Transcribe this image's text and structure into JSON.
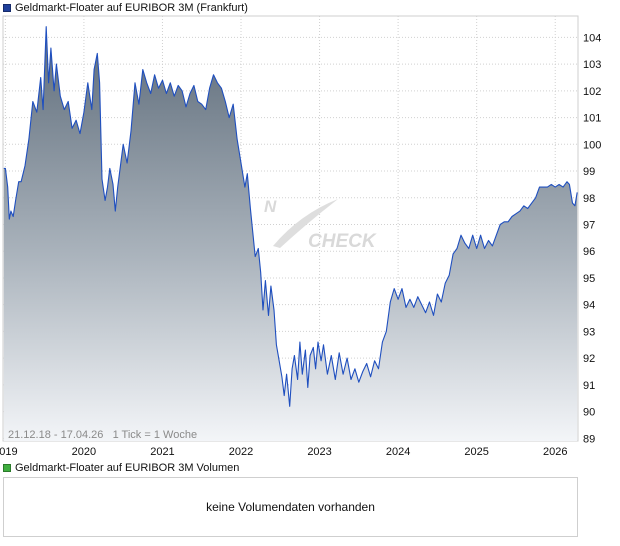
{
  "price_legend": "Geldmarkt-Floater auf EURIBOR 3M (Frankfurt)",
  "volume_legend": "Geldmarkt-Floater auf EURIBOR 3M Volumen",
  "no_volume_text": "keine Volumendaten vorhanden",
  "info_text": "21.12.18 - 17.04.26   1 Tick = 1 Woche",
  "watermark": {
    "left": "N",
    "right": "CHECK"
  },
  "colors": {
    "line": "#1f4fbf",
    "area_top": "#5d6b79",
    "area_bottom": "#f3f5f8",
    "grid": "#d0d0d0"
  },
  "chart_data": {
    "type": "area",
    "title": "Geldmarkt-Floater auf EURIBOR 3M (Frankfurt)",
    "xlabel": "",
    "ylabel": "",
    "date_range": [
      "21.12.18",
      "17.04.26"
    ],
    "xlim": [
      2018.97,
      2026.29
    ],
    "ylim": [
      88.9,
      104.8
    ],
    "x_ticks": [
      2019,
      2020,
      2021,
      2022,
      2023,
      2024,
      2025,
      2026
    ],
    "x_tick_labels": [
      "2019",
      "2020",
      "2021",
      "2022",
      "2023",
      "2024",
      "2025",
      "2026"
    ],
    "y_ticks": [
      89,
      90,
      91,
      92,
      93,
      94,
      95,
      96,
      97,
      98,
      99,
      100,
      101,
      102,
      103,
      104
    ],
    "grid": true,
    "series": [
      {
        "name": "Geldmarkt-Floater auf EURIBOR 3M (Frankfurt)",
        "points": [
          [
            2018.98,
            99.1
          ],
          [
            2019.0,
            99.1
          ],
          [
            2019.03,
            98.4
          ],
          [
            2019.05,
            97.2
          ],
          [
            2019.07,
            97.5
          ],
          [
            2019.1,
            97.3
          ],
          [
            2019.13,
            97.9
          ],
          [
            2019.17,
            98.6
          ],
          [
            2019.2,
            98.6
          ],
          [
            2019.25,
            99.2
          ],
          [
            2019.3,
            100.2
          ],
          [
            2019.35,
            101.6
          ],
          [
            2019.4,
            101.2
          ],
          [
            2019.45,
            102.5
          ],
          [
            2019.48,
            101.3
          ],
          [
            2019.52,
            104.4
          ],
          [
            2019.55,
            102.3
          ],
          [
            2019.58,
            103.6
          ],
          [
            2019.62,
            102.0
          ],
          [
            2019.65,
            103.0
          ],
          [
            2019.7,
            101.8
          ],
          [
            2019.75,
            101.3
          ],
          [
            2019.8,
            101.6
          ],
          [
            2019.85,
            100.6
          ],
          [
            2019.9,
            100.9
          ],
          [
            2019.95,
            100.4
          ],
          [
            2020.0,
            101.2
          ],
          [
            2020.05,
            102.3
          ],
          [
            2020.1,
            101.3
          ],
          [
            2020.13,
            102.8
          ],
          [
            2020.17,
            103.4
          ],
          [
            2020.2,
            102.3
          ],
          [
            2020.23,
            98.7
          ],
          [
            2020.27,
            97.9
          ],
          [
            2020.3,
            98.4
          ],
          [
            2020.33,
            99.1
          ],
          [
            2020.37,
            98.5
          ],
          [
            2020.4,
            97.5
          ],
          [
            2020.43,
            98.4
          ],
          [
            2020.47,
            99.3
          ],
          [
            2020.5,
            100.0
          ],
          [
            2020.55,
            99.3
          ],
          [
            2020.6,
            100.5
          ],
          [
            2020.65,
            102.3
          ],
          [
            2020.7,
            101.5
          ],
          [
            2020.75,
            102.8
          ],
          [
            2020.8,
            102.3
          ],
          [
            2020.85,
            101.9
          ],
          [
            2020.9,
            102.6
          ],
          [
            2020.95,
            102.1
          ],
          [
            2021.0,
            102.4
          ],
          [
            2021.05,
            101.9
          ],
          [
            2021.1,
            102.3
          ],
          [
            2021.15,
            101.8
          ],
          [
            2021.2,
            102.2
          ],
          [
            2021.25,
            102.0
          ],
          [
            2021.3,
            101.4
          ],
          [
            2021.35,
            101.9
          ],
          [
            2021.4,
            102.2
          ],
          [
            2021.45,
            101.6
          ],
          [
            2021.5,
            101.5
          ],
          [
            2021.55,
            101.3
          ],
          [
            2021.6,
            102.1
          ],
          [
            2021.65,
            102.6
          ],
          [
            2021.7,
            102.3
          ],
          [
            2021.75,
            102.1
          ],
          [
            2021.8,
            101.6
          ],
          [
            2021.85,
            101.0
          ],
          [
            2021.9,
            101.5
          ],
          [
            2021.95,
            100.2
          ],
          [
            2022.0,
            99.3
          ],
          [
            2022.05,
            98.4
          ],
          [
            2022.08,
            98.9
          ],
          [
            2022.12,
            97.6
          ],
          [
            2022.15,
            96.7
          ],
          [
            2022.18,
            95.8
          ],
          [
            2022.22,
            96.1
          ],
          [
            2022.25,
            95.2
          ],
          [
            2022.28,
            93.8
          ],
          [
            2022.31,
            94.9
          ],
          [
            2022.35,
            93.6
          ],
          [
            2022.38,
            94.7
          ],
          [
            2022.42,
            93.8
          ],
          [
            2022.45,
            92.5
          ],
          [
            2022.48,
            92.0
          ],
          [
            2022.52,
            91.3
          ],
          [
            2022.55,
            90.6
          ],
          [
            2022.58,
            91.4
          ],
          [
            2022.62,
            90.2
          ],
          [
            2022.65,
            91.6
          ],
          [
            2022.68,
            92.1
          ],
          [
            2022.72,
            91.2
          ],
          [
            2022.75,
            92.6
          ],
          [
            2022.78,
            91.4
          ],
          [
            2022.82,
            92.3
          ],
          [
            2022.85,
            90.9
          ],
          [
            2022.88,
            92.1
          ],
          [
            2022.92,
            92.4
          ],
          [
            2022.95,
            91.6
          ],
          [
            2022.98,
            92.6
          ],
          [
            2023.02,
            91.9
          ],
          [
            2023.05,
            92.5
          ],
          [
            2023.1,
            91.4
          ],
          [
            2023.15,
            92.1
          ],
          [
            2023.2,
            91.2
          ],
          [
            2023.25,
            92.2
          ],
          [
            2023.3,
            91.4
          ],
          [
            2023.35,
            92.0
          ],
          [
            2023.4,
            91.2
          ],
          [
            2023.45,
            91.6
          ],
          [
            2023.5,
            91.1
          ],
          [
            2023.55,
            91.5
          ],
          [
            2023.6,
            91.8
          ],
          [
            2023.65,
            91.3
          ],
          [
            2023.7,
            91.9
          ],
          [
            2023.75,
            91.6
          ],
          [
            2023.8,
            92.6
          ],
          [
            2023.85,
            93.0
          ],
          [
            2023.9,
            94.1
          ],
          [
            2023.95,
            94.6
          ],
          [
            2024.0,
            94.2
          ],
          [
            2024.05,
            94.6
          ],
          [
            2024.1,
            93.9
          ],
          [
            2024.15,
            94.2
          ],
          [
            2024.2,
            93.9
          ],
          [
            2024.25,
            94.3
          ],
          [
            2024.3,
            94.0
          ],
          [
            2024.35,
            93.7
          ],
          [
            2024.4,
            94.1
          ],
          [
            2024.45,
            93.6
          ],
          [
            2024.5,
            94.4
          ],
          [
            2024.55,
            94.1
          ],
          [
            2024.6,
            94.8
          ],
          [
            2024.65,
            95.1
          ],
          [
            2024.7,
            95.9
          ],
          [
            2024.75,
            96.1
          ],
          [
            2024.8,
            96.6
          ],
          [
            2024.85,
            96.3
          ],
          [
            2024.9,
            96.1
          ],
          [
            2024.95,
            96.6
          ],
          [
            2025.0,
            96.1
          ],
          [
            2025.05,
            96.6
          ],
          [
            2025.1,
            96.1
          ],
          [
            2025.15,
            96.4
          ],
          [
            2025.2,
            96.2
          ],
          [
            2025.25,
            96.6
          ],
          [
            2025.3,
            97.0
          ],
          [
            2025.35,
            97.1
          ],
          [
            2025.4,
            97.1
          ],
          [
            2025.45,
            97.3
          ],
          [
            2025.5,
            97.4
          ],
          [
            2025.55,
            97.5
          ],
          [
            2025.6,
            97.7
          ],
          [
            2025.65,
            97.6
          ],
          [
            2025.7,
            97.8
          ],
          [
            2025.75,
            98.0
          ],
          [
            2025.8,
            98.4
          ],
          [
            2025.85,
            98.4
          ],
          [
            2025.9,
            98.4
          ],
          [
            2025.95,
            98.5
          ],
          [
            2026.0,
            98.4
          ],
          [
            2026.05,
            98.5
          ],
          [
            2026.1,
            98.4
          ],
          [
            2026.15,
            98.6
          ],
          [
            2026.18,
            98.5
          ],
          [
            2026.22,
            97.8
          ],
          [
            2026.25,
            97.7
          ],
          [
            2026.28,
            98.2
          ]
        ]
      }
    ]
  }
}
